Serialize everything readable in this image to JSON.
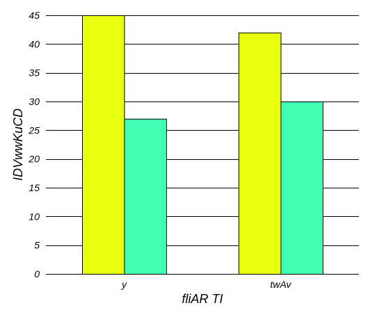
{
  "chart_data": {
    "type": "bar",
    "title": "",
    "xlabel": "fliAR  TI",
    "ylabel": "IDVwwKuCD",
    "categories": [
      "y",
      "twAv"
    ],
    "series": [
      {
        "values": [
          45,
          42
        ],
        "color": "#e6ff0d"
      },
      {
        "values": [
          27,
          30
        ],
        "color": "#40ffb3"
      }
    ],
    "ylim": [
      0,
      45
    ],
    "yticks": [
      0,
      5,
      10,
      15,
      20,
      25,
      30,
      35,
      40,
      45
    ],
    "grid": true
  }
}
